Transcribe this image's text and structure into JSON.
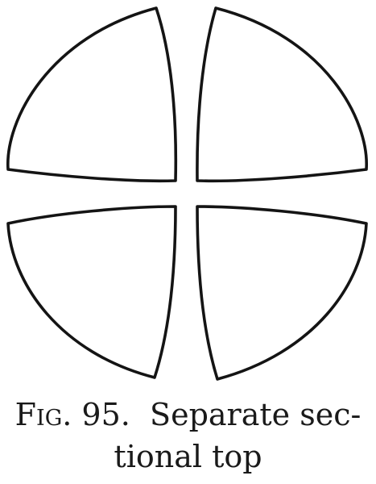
{
  "figure": {
    "caption": {
      "label": "Fig. 95.",
      "line1_text": "Separate sec-",
      "line2_text": "tional top"
    },
    "sections": [
      "top-left",
      "top-right",
      "bottom-left",
      "bottom-right"
    ],
    "outline_color": "#141414",
    "fill_color": "#ffffff"
  }
}
